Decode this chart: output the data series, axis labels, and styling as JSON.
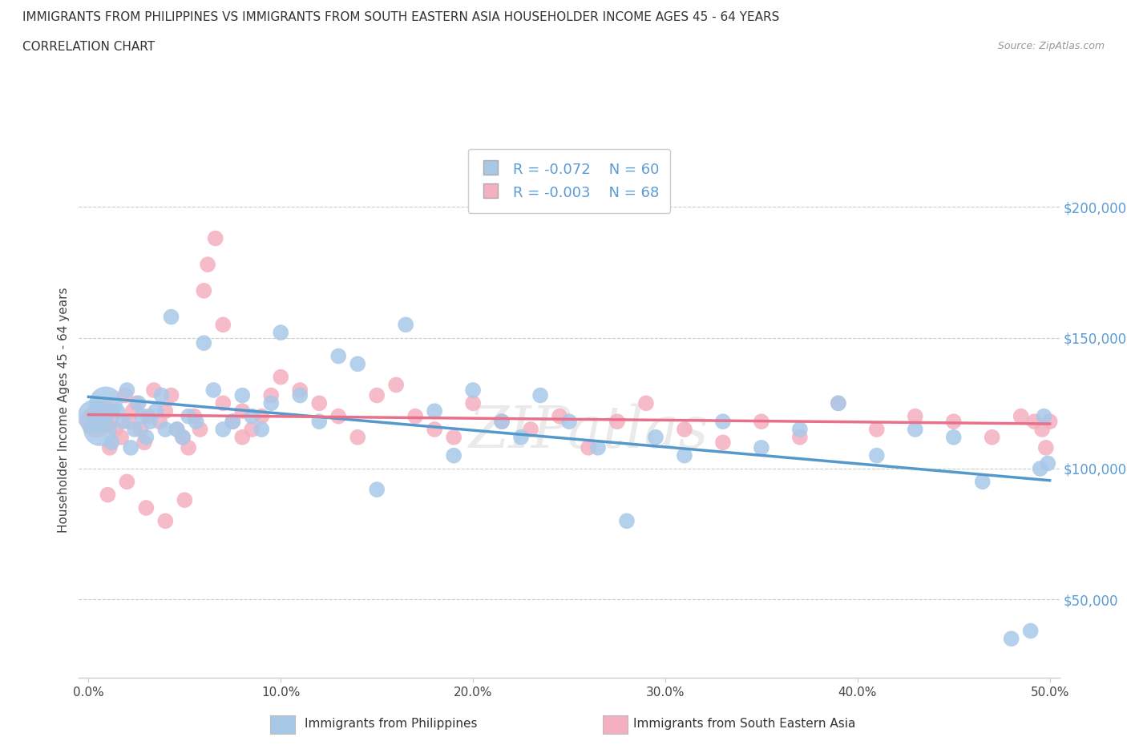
{
  "title_line1": "IMMIGRANTS FROM PHILIPPINES VS IMMIGRANTS FROM SOUTH EASTERN ASIA HOUSEHOLDER INCOME AGES 45 - 64 YEARS",
  "title_line2": "CORRELATION CHART",
  "source_text": "Source: ZipAtlas.com",
  "ylabel": "Householder Income Ages 45 - 64 years",
  "xlim": [
    -0.005,
    0.505
  ],
  "ylim": [
    20000,
    225000
  ],
  "xtick_labels": [
    "0.0%",
    "10.0%",
    "20.0%",
    "30.0%",
    "40.0%",
    "50.0%"
  ],
  "xtick_vals": [
    0.0,
    0.1,
    0.2,
    0.3,
    0.4,
    0.5
  ],
  "ytick_vals": [
    50000,
    100000,
    150000,
    200000
  ],
  "ytick_labels": [
    "$50,000",
    "$100,000",
    "$150,000",
    "$200,000"
  ],
  "legend_r1": "R = -0.072",
  "legend_n1": "N = 60",
  "legend_r2": "R = -0.003",
  "legend_n2": "N = 68",
  "color_philippines": "#a8c8e8",
  "color_sea": "#f5afc0",
  "line_color_philippines": "#5599cc",
  "line_color_sea": "#e8708a",
  "watermark": "ZIPatlas",
  "philippines_x": [
    0.003,
    0.006,
    0.009,
    0.012,
    0.015,
    0.018,
    0.02,
    0.022,
    0.024,
    0.026,
    0.028,
    0.03,
    0.032,
    0.035,
    0.038,
    0.04,
    0.043,
    0.046,
    0.049,
    0.052,
    0.056,
    0.06,
    0.065,
    0.07,
    0.075,
    0.08,
    0.085,
    0.09,
    0.095,
    0.1,
    0.11,
    0.12,
    0.13,
    0.14,
    0.15,
    0.165,
    0.18,
    0.19,
    0.2,
    0.215,
    0.225,
    0.235,
    0.25,
    0.265,
    0.28,
    0.295,
    0.31,
    0.33,
    0.35,
    0.37,
    0.39,
    0.41,
    0.43,
    0.45,
    0.465,
    0.48,
    0.49,
    0.495,
    0.497,
    0.499
  ],
  "philippines_y": [
    120000,
    115000,
    125000,
    110000,
    122000,
    118000,
    130000,
    108000,
    115000,
    125000,
    120000,
    112000,
    118000,
    122000,
    128000,
    115000,
    158000,
    115000,
    112000,
    120000,
    118000,
    148000,
    130000,
    115000,
    118000,
    128000,
    120000,
    115000,
    125000,
    152000,
    128000,
    118000,
    143000,
    140000,
    92000,
    155000,
    122000,
    105000,
    130000,
    118000,
    112000,
    128000,
    118000,
    108000,
    80000,
    112000,
    105000,
    118000,
    108000,
    115000,
    125000,
    105000,
    115000,
    112000,
    95000,
    35000,
    38000,
    100000,
    120000,
    102000
  ],
  "sea_x": [
    0.004,
    0.008,
    0.011,
    0.014,
    0.017,
    0.019,
    0.021,
    0.023,
    0.025,
    0.027,
    0.029,
    0.031,
    0.034,
    0.037,
    0.04,
    0.043,
    0.046,
    0.049,
    0.052,
    0.055,
    0.058,
    0.062,
    0.066,
    0.07,
    0.075,
    0.08,
    0.085,
    0.09,
    0.095,
    0.1,
    0.11,
    0.12,
    0.13,
    0.14,
    0.15,
    0.16,
    0.17,
    0.18,
    0.19,
    0.2,
    0.215,
    0.23,
    0.245,
    0.26,
    0.275,
    0.29,
    0.31,
    0.33,
    0.35,
    0.37,
    0.39,
    0.41,
    0.43,
    0.45,
    0.47,
    0.485,
    0.492,
    0.496,
    0.498,
    0.5,
    0.01,
    0.02,
    0.03,
    0.04,
    0.05,
    0.06,
    0.07,
    0.08
  ],
  "sea_y": [
    118000,
    120000,
    108000,
    115000,
    112000,
    128000,
    118000,
    122000,
    125000,
    115000,
    110000,
    120000,
    130000,
    118000,
    122000,
    128000,
    115000,
    112000,
    108000,
    120000,
    115000,
    178000,
    188000,
    125000,
    118000,
    112000,
    115000,
    120000,
    128000,
    135000,
    130000,
    125000,
    120000,
    112000,
    128000,
    132000,
    120000,
    115000,
    112000,
    125000,
    118000,
    115000,
    120000,
    108000,
    118000,
    125000,
    115000,
    110000,
    118000,
    112000,
    125000,
    115000,
    120000,
    118000,
    112000,
    120000,
    118000,
    115000,
    108000,
    118000,
    90000,
    95000,
    85000,
    80000,
    88000,
    168000,
    155000,
    122000
  ],
  "philippines_size": [
    900,
    900,
    900,
    200,
    200,
    200,
    200,
    200,
    200,
    200,
    200,
    200,
    200,
    200,
    200,
    200,
    200,
    200,
    200,
    200,
    200,
    200,
    200,
    200,
    200,
    200,
    200,
    200,
    200,
    200,
    200,
    200,
    200,
    200,
    200,
    200,
    200,
    200,
    200,
    200,
    200,
    200,
    200,
    200,
    200,
    200,
    200,
    200,
    200,
    200,
    200,
    200,
    200,
    200,
    200,
    200,
    200,
    200,
    200,
    200
  ],
  "sea_size": [
    800,
    800,
    200,
    200,
    200,
    200,
    200,
    200,
    200,
    200,
    200,
    200,
    200,
    200,
    200,
    200,
    200,
    200,
    200,
    200,
    200,
    200,
    200,
    200,
    200,
    200,
    200,
    200,
    200,
    200,
    200,
    200,
    200,
    200,
    200,
    200,
    200,
    200,
    200,
    200,
    200,
    200,
    200,
    200,
    200,
    200,
    200,
    200,
    200,
    200,
    200,
    200,
    200,
    200,
    200,
    200,
    200,
    200,
    200,
    200,
    200,
    200,
    200,
    200,
    200,
    200,
    200,
    200
  ]
}
